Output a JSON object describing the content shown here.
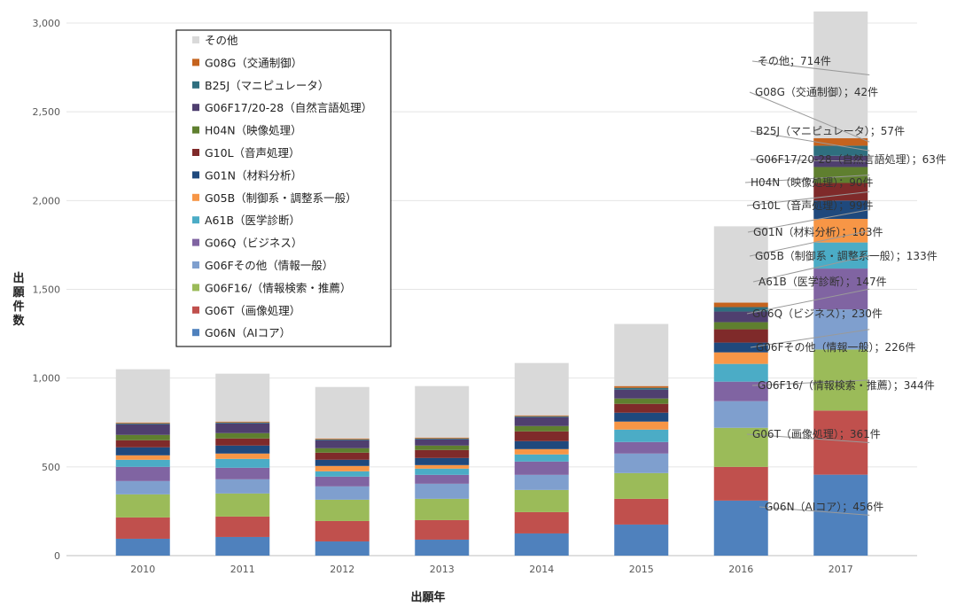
{
  "chart_data": {
    "type": "bar",
    "stacked": true,
    "title": "",
    "xlabel": "出願年",
    "ylabel": "出願件数",
    "ylim": [
      0,
      3000
    ],
    "yticks": [
      0,
      500,
      1000,
      1500,
      2000,
      2500,
      3000
    ],
    "ytick_labels": [
      "0",
      "500",
      "1,000",
      "1,500",
      "2,000",
      "2,500",
      "3,000"
    ],
    "grid": true,
    "legend_position": "top-left",
    "categories": [
      "2010",
      "2011",
      "2012",
      "2013",
      "2014",
      "2015",
      "2016",
      "2017"
    ],
    "series": [
      {
        "name": "G06N（AIコア）",
        "color": "#4f81bd",
        "values": [
          95,
          105,
          80,
          90,
          125,
          175,
          310,
          456
        ]
      },
      {
        "name": "G06T（画像処理）",
        "color": "#c0504d",
        "values": [
          120,
          115,
          115,
          110,
          120,
          145,
          190,
          361
        ]
      },
      {
        "name": "G06F16/（情報検索・推薦）",
        "color": "#9bbb59",
        "values": [
          130,
          130,
          120,
          120,
          125,
          145,
          220,
          344
        ]
      },
      {
        "name": "G06Fその他（情報一般）",
        "color": "#7f9fce",
        "values": [
          75,
          80,
          75,
          85,
          85,
          110,
          150,
          226
        ]
      },
      {
        "name": "G06Q（ビジネス）",
        "color": "#8064a2",
        "values": [
          80,
          65,
          55,
          50,
          75,
          65,
          110,
          230
        ]
      },
      {
        "name": "A61B（医学診断）",
        "color": "#4bacc6",
        "values": [
          40,
          50,
          30,
          35,
          40,
          70,
          100,
          147
        ]
      },
      {
        "name": "G05B（制御系・調整系一般）",
        "color": "#f79646",
        "values": [
          25,
          30,
          30,
          20,
          30,
          45,
          65,
          133
        ]
      },
      {
        "name": "G01N（材料分析）",
        "color": "#1f497d",
        "values": [
          45,
          45,
          35,
          40,
          45,
          50,
          55,
          103
        ]
      },
      {
        "name": "G10L（音声処理）",
        "color": "#7f2a2a",
        "values": [
          40,
          40,
          40,
          45,
          55,
          50,
          75,
          99
        ]
      },
      {
        "name": "H04N（映像処理）",
        "color": "#5f7f2f",
        "values": [
          30,
          30,
          25,
          25,
          30,
          30,
          40,
          90
        ]
      },
      {
        "name": "G06F17/20-28（自然言語処理）",
        "color": "#4f3f6f",
        "values": [
          60,
          55,
          45,
          35,
          50,
          50,
          60,
          63
        ]
      },
      {
        "name": "B25J（マニピュレータ）",
        "color": "#2f6f7f",
        "values": [
          5,
          5,
          5,
          5,
          5,
          10,
          25,
          57
        ]
      },
      {
        "name": "G08G（交通制御）",
        "color": "#c5631e",
        "values": [
          5,
          5,
          5,
          5,
          5,
          10,
          25,
          42
        ]
      },
      {
        "name": "その他",
        "color": "#d9d9d9",
        "values": [
          300,
          270,
          290,
          290,
          295,
          350,
          430,
          714
        ]
      }
    ],
    "annotations": [
      "その他；714件",
      "G08G（交通制御）；42件",
      "B25J（マニピュレータ）；57件",
      "G06F17/20-28（自然言語処理）；63件",
      "H04N（映像処理）；90件",
      "G10L（音声処理）；99件",
      "G01N（材料分析）；103件",
      "G05B（制御系・調整系一般）；133件",
      "A61B（医学診断）；147件",
      "G06Q（ビジネス）；230件",
      "G06Fその他（情報一般）；226件",
      "G06F16/（情報検索・推薦）；344件",
      "G06T（画像処理）；361件",
      "G06N（AIコア）；456件"
    ]
  }
}
